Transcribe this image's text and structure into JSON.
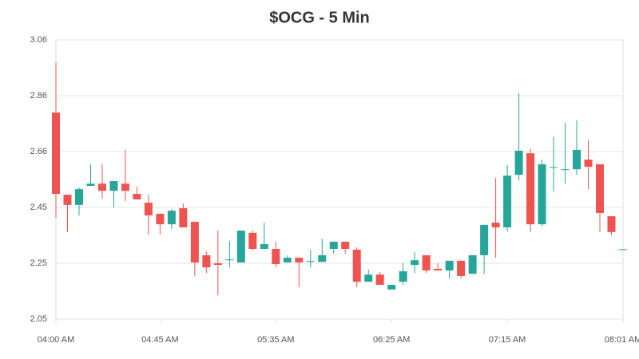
{
  "chart_data": {
    "type": "candlestick",
    "title": "$OCG - 5 Min",
    "open": [
      2.797,
      2.5,
      2.463,
      2.532,
      2.54,
      2.514,
      2.54,
      2.503,
      2.471,
      2.431,
      2.393,
      2.451,
      2.402,
      2.281,
      2.252,
      2.263,
      2.255,
      2.362,
      2.304,
      2.304,
      2.255,
      2.272,
      2.257,
      2.257,
      2.304,
      2.33,
      2.301,
      2.185,
      2.211,
      2.157,
      2.185,
      2.246,
      2.281,
      2.232,
      2.226,
      2.261,
      2.214,
      2.281,
      2.399,
      2.382,
      2.572,
      2.65,
      2.393,
      2.598,
      2.589,
      2.592,
      2.627,
      2.61,
      2.422,
      2.301
    ],
    "high": [
      2.979,
      2.5,
      2.526,
      2.61,
      2.61,
      2.549,
      2.662,
      2.529,
      2.5,
      2.431,
      2.448,
      2.468,
      2.402,
      2.295,
      2.37,
      2.333,
      2.37,
      2.37,
      2.399,
      2.33,
      2.281,
      2.272,
      2.301,
      2.341,
      2.33,
      2.33,
      2.31,
      2.229,
      2.22,
      2.174,
      2.252,
      2.292,
      2.281,
      2.252,
      2.261,
      2.261,
      2.281,
      2.391,
      2.561,
      2.607,
      2.867,
      2.667,
      2.627,
      2.708,
      2.76,
      2.769,
      2.699,
      2.61,
      2.422,
      2.303
    ],
    "low": [
      2.416,
      2.365,
      2.425,
      2.532,
      2.486,
      2.454,
      2.477,
      2.483,
      2.356,
      2.356,
      2.376,
      2.382,
      2.206,
      2.217,
      2.136,
      2.237,
      2.255,
      2.298,
      2.304,
      2.237,
      2.255,
      2.165,
      2.237,
      2.257,
      2.287,
      2.287,
      2.165,
      2.185,
      2.174,
      2.157,
      2.174,
      2.217,
      2.217,
      2.226,
      2.197,
      2.197,
      2.214,
      2.214,
      2.272,
      2.367,
      2.552,
      2.365,
      2.385,
      2.512,
      2.54,
      2.572,
      2.52,
      2.365,
      2.353,
      2.301
    ],
    "close": [
      2.503,
      2.463,
      2.52,
      2.54,
      2.514,
      2.549,
      2.514,
      2.483,
      2.425,
      2.393,
      2.442,
      2.382,
      2.255,
      2.237,
      2.246,
      2.266,
      2.37,
      2.304,
      2.321,
      2.249,
      2.272,
      2.255,
      2.26,
      2.281,
      2.33,
      2.304,
      2.185,
      2.211,
      2.174,
      2.174,
      2.223,
      2.263,
      2.226,
      2.226,
      2.261,
      2.206,
      2.281,
      2.391,
      2.382,
      2.569,
      2.659,
      2.393,
      2.61,
      2.6,
      2.592,
      2.662,
      2.601,
      2.434,
      2.365,
      2.303
    ],
    "up_color": "#26a69a",
    "down_color": "#ef5350",
    "xlim": [
      0,
      49
    ],
    "xticks": [
      {
        "value": 0,
        "label": "04:00 AM"
      },
      {
        "value": 9,
        "label": "04:45 AM"
      },
      {
        "value": 19,
        "label": "05:35 AM"
      },
      {
        "value": 29,
        "label": "06:25 AM"
      },
      {
        "value": 39,
        "label": "07:15 AM"
      },
      {
        "value": 49,
        "label": "08:01 AM"
      }
    ],
    "ylim": [
      2.05,
      3.06
    ],
    "yticks": [
      {
        "value": 2.05,
        "label": "2.05"
      },
      {
        "value": 2.252,
        "label": "2.25"
      },
      {
        "value": 2.454,
        "label": "2.45"
      },
      {
        "value": 2.656,
        "label": "2.66"
      },
      {
        "value": 2.858,
        "label": "2.86"
      },
      {
        "value": 3.06,
        "label": "3.06"
      }
    ],
    "grid": true
  }
}
